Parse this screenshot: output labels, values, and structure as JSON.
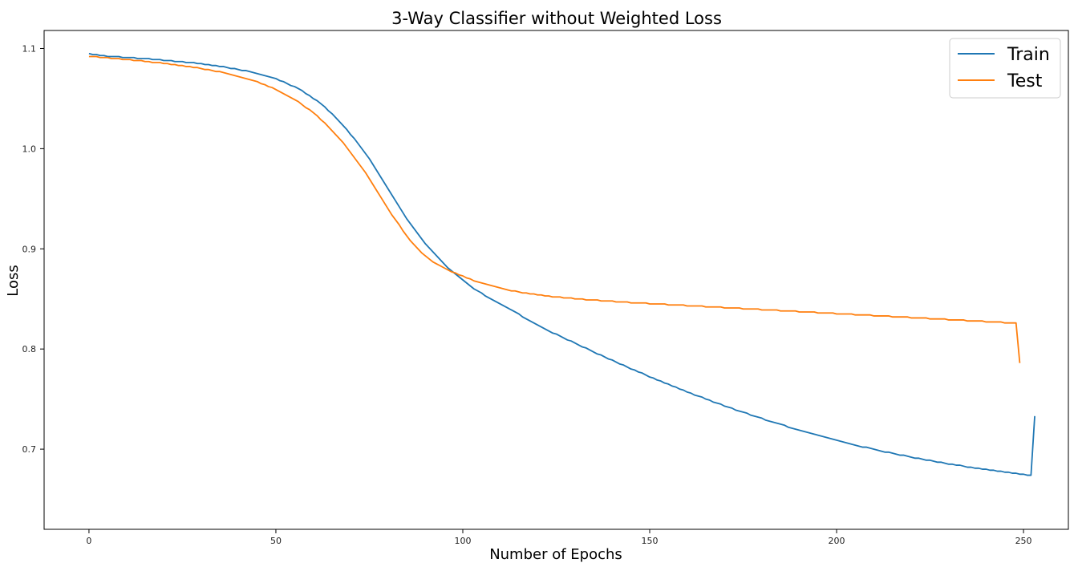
{
  "chart_data": {
    "type": "line",
    "title": "3-Way Classifier without Weighted Loss",
    "xlabel": "Number of Epochs",
    "ylabel": "Loss",
    "xlim": [
      -12,
      262
    ],
    "ylim": [
      0.62,
      1.118
    ],
    "xticks": [
      0,
      50,
      100,
      150,
      200,
      250
    ],
    "yticks": [
      0.7,
      0.8,
      0.9,
      1.0,
      1.1
    ],
    "ytick_labels": [
      "0.7",
      "0.8",
      "0.9",
      "1.0",
      "1.1"
    ],
    "grid": false,
    "legend_position": "top-right",
    "series": [
      {
        "name": "Train",
        "color": "#1f77b4",
        "values": [
          1.095,
          1.094,
          1.094,
          1.093,
          1.093,
          1.092,
          1.092,
          1.092,
          1.092,
          1.091,
          1.091,
          1.091,
          1.091,
          1.09,
          1.09,
          1.09,
          1.09,
          1.089,
          1.089,
          1.089,
          1.088,
          1.088,
          1.088,
          1.087,
          1.087,
          1.087,
          1.086,
          1.086,
          1.086,
          1.085,
          1.085,
          1.084,
          1.084,
          1.083,
          1.083,
          1.082,
          1.082,
          1.081,
          1.08,
          1.08,
          1.079,
          1.078,
          1.078,
          1.077,
          1.076,
          1.075,
          1.074,
          1.073,
          1.072,
          1.071,
          1.07,
          1.068,
          1.067,
          1.065,
          1.063,
          1.062,
          1.06,
          1.058,
          1.055,
          1.053,
          1.05,
          1.048,
          1.045,
          1.042,
          1.038,
          1.035,
          1.031,
          1.027,
          1.023,
          1.019,
          1.014,
          1.01,
          1.005,
          1.0,
          0.995,
          0.99,
          0.984,
          0.978,
          0.972,
          0.966,
          0.96,
          0.954,
          0.948,
          0.942,
          0.936,
          0.93,
          0.925,
          0.92,
          0.915,
          0.91,
          0.905,
          0.901,
          0.897,
          0.893,
          0.889,
          0.885,
          0.881,
          0.878,
          0.875,
          0.872,
          0.869,
          0.866,
          0.863,
          0.86,
          0.858,
          0.856,
          0.853,
          0.851,
          0.849,
          0.847,
          0.845,
          0.843,
          0.841,
          0.839,
          0.837,
          0.835,
          0.832,
          0.83,
          0.828,
          0.826,
          0.824,
          0.822,
          0.82,
          0.818,
          0.816,
          0.815,
          0.813,
          0.811,
          0.809,
          0.808,
          0.806,
          0.804,
          0.802,
          0.801,
          0.799,
          0.797,
          0.795,
          0.794,
          0.792,
          0.79,
          0.789,
          0.787,
          0.785,
          0.784,
          0.782,
          0.78,
          0.779,
          0.777,
          0.776,
          0.774,
          0.772,
          0.771,
          0.769,
          0.768,
          0.766,
          0.765,
          0.763,
          0.762,
          0.76,
          0.759,
          0.757,
          0.756,
          0.754,
          0.753,
          0.752,
          0.75,
          0.749,
          0.747,
          0.746,
          0.745,
          0.743,
          0.742,
          0.741,
          0.739,
          0.738,
          0.737,
          0.736,
          0.734,
          0.733,
          0.732,
          0.731,
          0.729,
          0.728,
          0.727,
          0.726,
          0.725,
          0.724,
          0.722,
          0.721,
          0.72,
          0.719,
          0.718,
          0.717,
          0.716,
          0.715,
          0.714,
          0.713,
          0.712,
          0.711,
          0.71,
          0.709,
          0.708,
          0.707,
          0.706,
          0.705,
          0.704,
          0.703,
          0.702,
          0.702,
          0.701,
          0.7,
          0.699,
          0.698,
          0.697,
          0.697,
          0.696,
          0.695,
          0.694,
          0.694,
          0.693,
          0.692,
          0.691,
          0.691,
          0.69,
          0.689,
          0.689,
          0.688,
          0.687,
          0.687,
          0.686,
          0.685,
          0.685,
          0.684,
          0.684,
          0.683,
          0.682,
          0.682,
          0.681,
          0.681,
          0.68,
          0.68,
          0.679,
          0.679,
          0.678,
          0.678,
          0.677,
          0.677,
          0.676,
          0.676,
          0.675,
          0.675,
          0.674,
          0.674,
          0.733
        ]
      },
      {
        "name": "Test",
        "color": "#ff7f0e",
        "values": [
          1.092,
          1.092,
          1.092,
          1.091,
          1.091,
          1.091,
          1.09,
          1.09,
          1.09,
          1.089,
          1.089,
          1.089,
          1.088,
          1.088,
          1.088,
          1.087,
          1.087,
          1.086,
          1.086,
          1.086,
          1.085,
          1.085,
          1.084,
          1.084,
          1.083,
          1.083,
          1.082,
          1.082,
          1.081,
          1.081,
          1.08,
          1.079,
          1.079,
          1.078,
          1.077,
          1.077,
          1.076,
          1.075,
          1.074,
          1.073,
          1.072,
          1.071,
          1.07,
          1.069,
          1.068,
          1.067,
          1.065,
          1.064,
          1.062,
          1.061,
          1.059,
          1.057,
          1.055,
          1.053,
          1.051,
          1.049,
          1.047,
          1.044,
          1.041,
          1.039,
          1.036,
          1.033,
          1.029,
          1.026,
          1.022,
          1.018,
          1.014,
          1.01,
          1.006,
          1.001,
          0.996,
          0.991,
          0.986,
          0.981,
          0.976,
          0.97,
          0.964,
          0.958,
          0.952,
          0.946,
          0.94,
          0.934,
          0.929,
          0.924,
          0.918,
          0.913,
          0.908,
          0.904,
          0.9,
          0.896,
          0.893,
          0.89,
          0.887,
          0.885,
          0.883,
          0.881,
          0.879,
          0.877,
          0.876,
          0.874,
          0.873,
          0.871,
          0.87,
          0.868,
          0.867,
          0.866,
          0.865,
          0.864,
          0.863,
          0.862,
          0.861,
          0.86,
          0.859,
          0.858,
          0.858,
          0.857,
          0.856,
          0.856,
          0.855,
          0.855,
          0.854,
          0.854,
          0.853,
          0.853,
          0.852,
          0.852,
          0.852,
          0.851,
          0.851,
          0.851,
          0.85,
          0.85,
          0.85,
          0.849,
          0.849,
          0.849,
          0.849,
          0.848,
          0.848,
          0.848,
          0.848,
          0.847,
          0.847,
          0.847,
          0.847,
          0.846,
          0.846,
          0.846,
          0.846,
          0.846,
          0.845,
          0.845,
          0.845,
          0.845,
          0.845,
          0.844,
          0.844,
          0.844,
          0.844,
          0.844,
          0.843,
          0.843,
          0.843,
          0.843,
          0.843,
          0.842,
          0.842,
          0.842,
          0.842,
          0.842,
          0.841,
          0.841,
          0.841,
          0.841,
          0.841,
          0.84,
          0.84,
          0.84,
          0.84,
          0.84,
          0.839,
          0.839,
          0.839,
          0.839,
          0.839,
          0.838,
          0.838,
          0.838,
          0.838,
          0.838,
          0.837,
          0.837,
          0.837,
          0.837,
          0.837,
          0.836,
          0.836,
          0.836,
          0.836,
          0.836,
          0.835,
          0.835,
          0.835,
          0.835,
          0.835,
          0.834,
          0.834,
          0.834,
          0.834,
          0.834,
          0.833,
          0.833,
          0.833,
          0.833,
          0.833,
          0.832,
          0.832,
          0.832,
          0.832,
          0.832,
          0.831,
          0.831,
          0.831,
          0.831,
          0.831,
          0.83,
          0.83,
          0.83,
          0.83,
          0.83,
          0.829,
          0.829,
          0.829,
          0.829,
          0.829,
          0.828,
          0.828,
          0.828,
          0.828,
          0.828,
          0.827,
          0.827,
          0.827,
          0.827,
          0.827,
          0.826,
          0.826,
          0.826,
          0.826,
          0.786
        ]
      }
    ]
  }
}
